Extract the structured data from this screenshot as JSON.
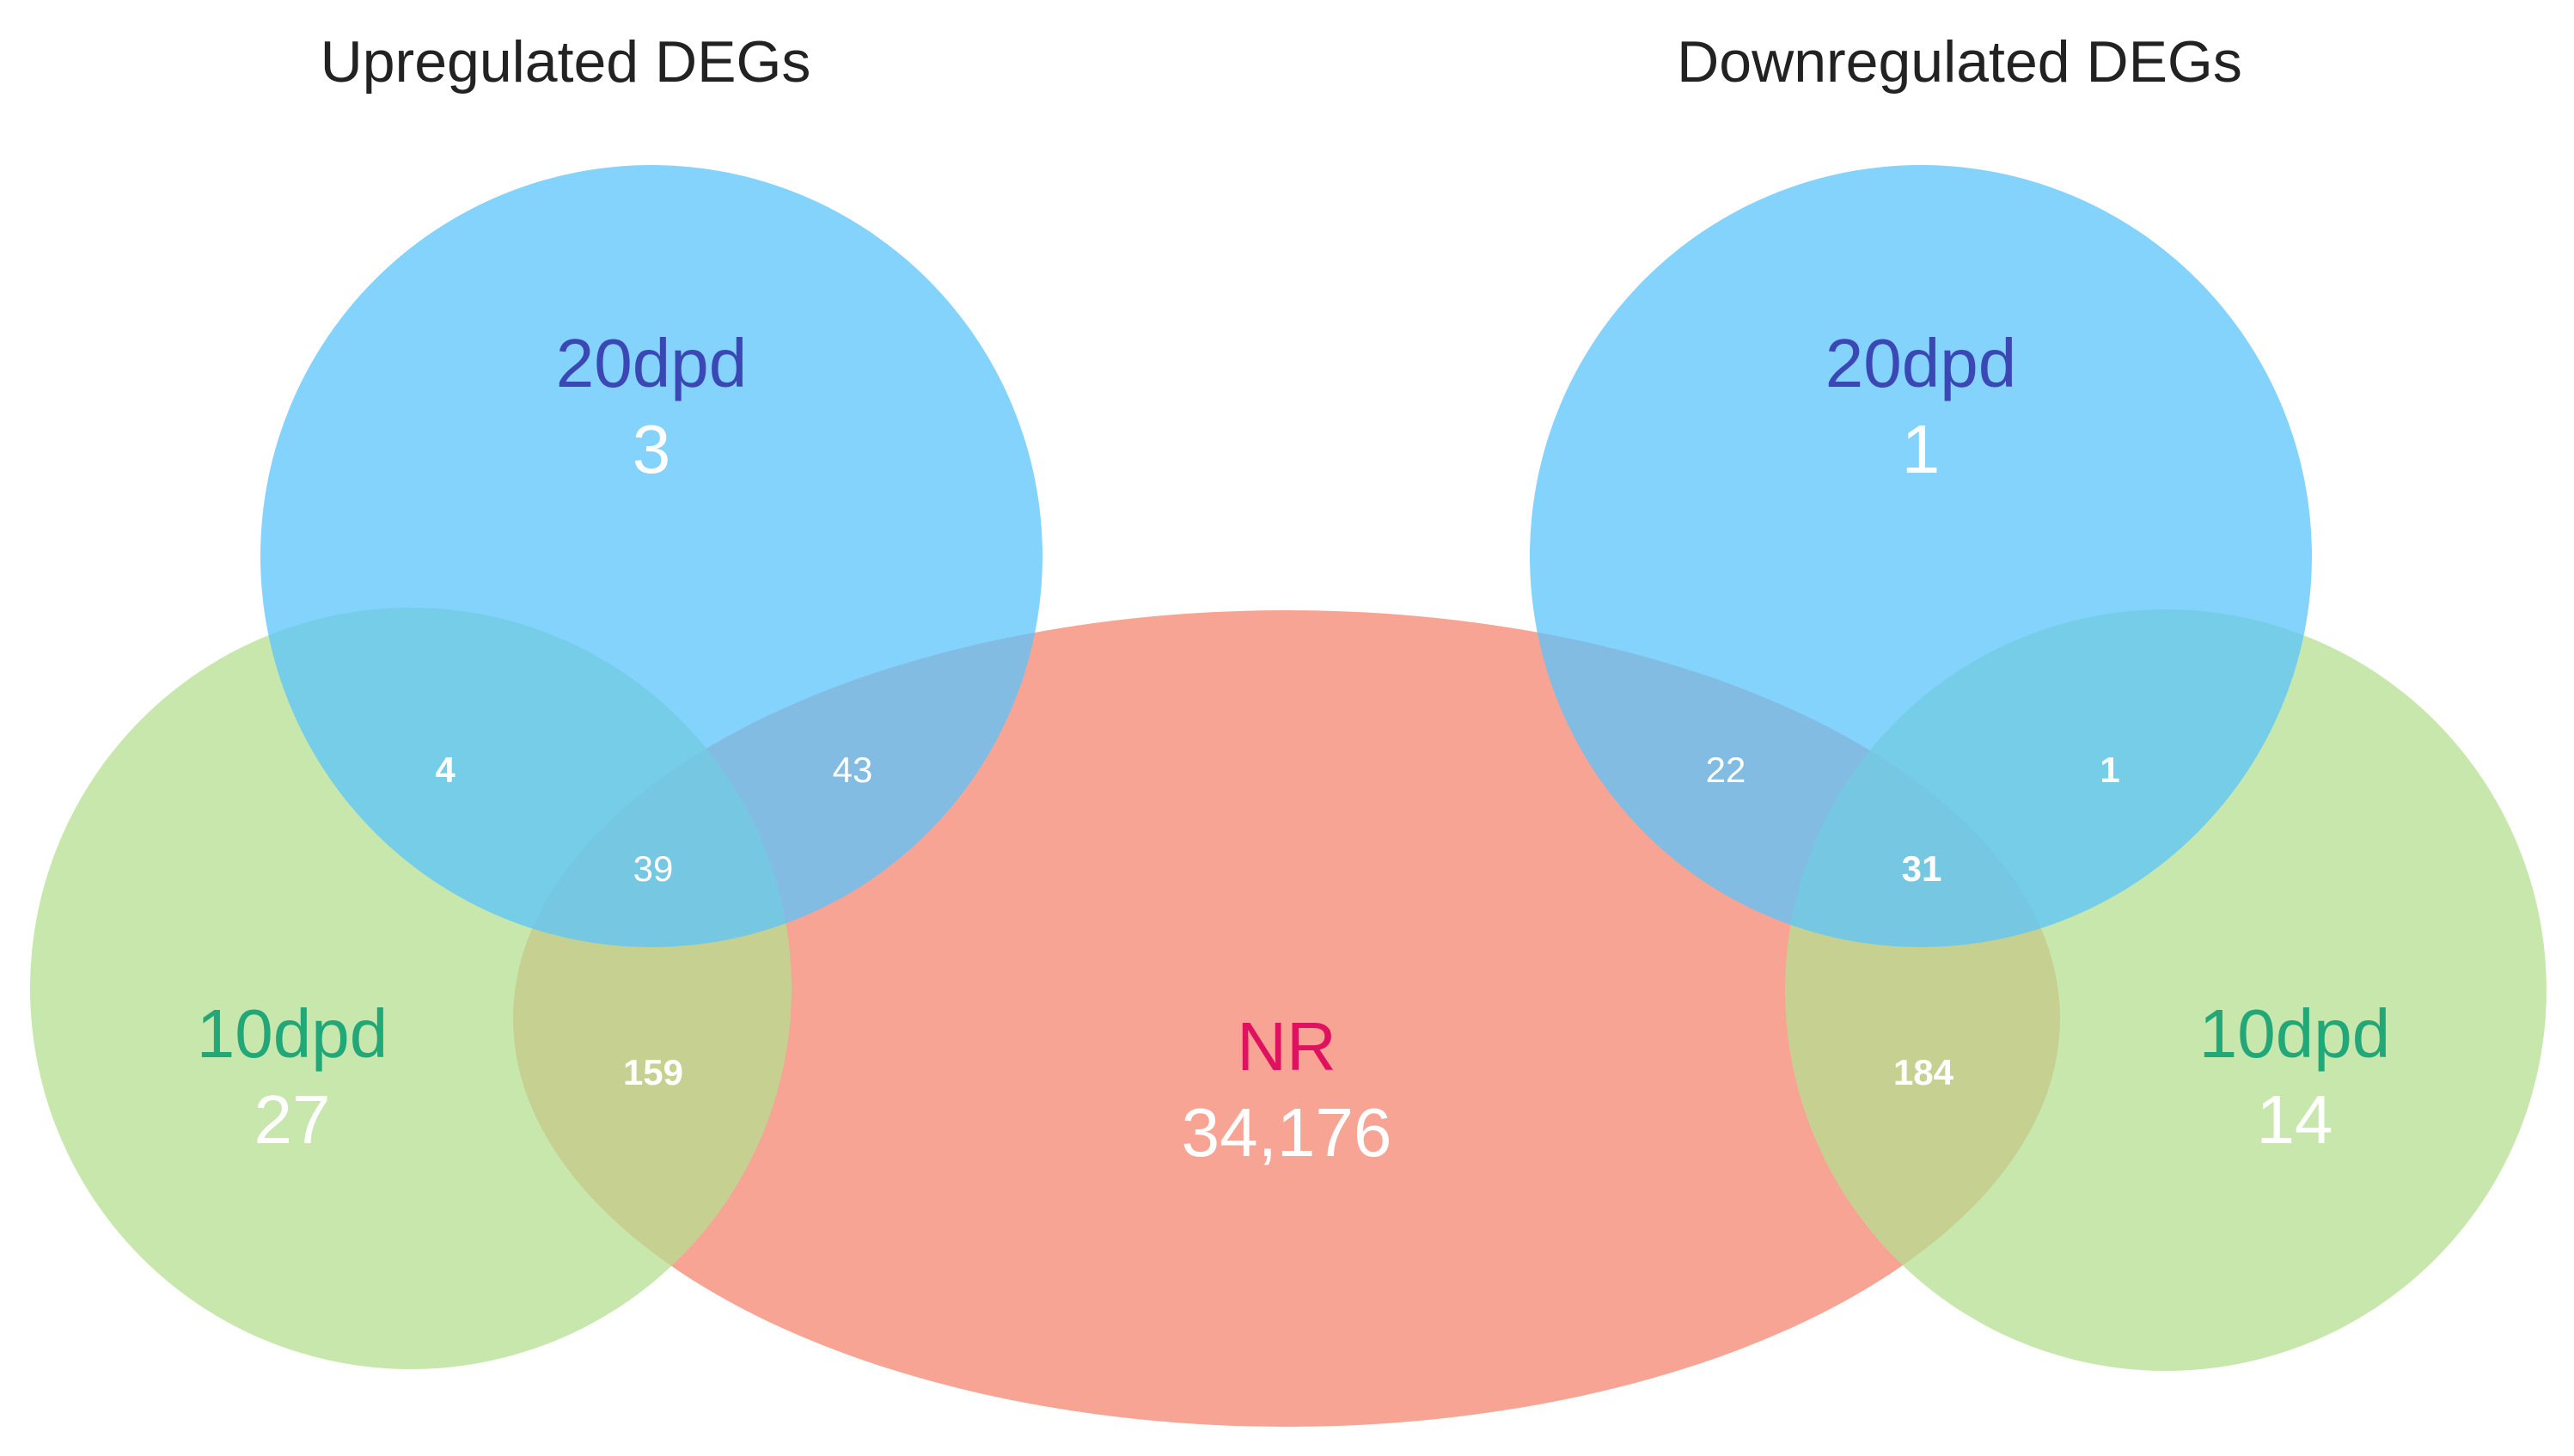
{
  "colors": {
    "set_20dpd": "#5bc4fc",
    "set_10dpd": "#b5df90",
    "set_nr": "#f68b77",
    "label_20dpd": "#3a47b4",
    "label_10dpd": "#22a878",
    "label_nr": "#e0115f",
    "count_text": "#ffffff",
    "title_text": "#222222"
  },
  "left_diagram": {
    "title": "Upregulated DEGs",
    "set_20dpd": {
      "name": "20dpd",
      "count": "3"
    },
    "set_10dpd": {
      "name": "10dpd",
      "count": "27"
    },
    "overlap_20dpd_10dpd": "4",
    "overlap_20dpd_nr": "43",
    "overlap_all": "39",
    "overlap_10dpd_nr": "159"
  },
  "nr_set": {
    "name": "NR",
    "count": "34,176"
  },
  "right_diagram": {
    "title": "Downregulated DEGs",
    "set_20dpd": {
      "name": "20dpd",
      "count": "1"
    },
    "set_10dpd": {
      "name": "10dpd",
      "count": "14"
    },
    "overlap_20dpd_nr": "22",
    "overlap_20dpd_10dpd": "1",
    "overlap_all": "31",
    "overlap_10dpd_nr": "184"
  }
}
